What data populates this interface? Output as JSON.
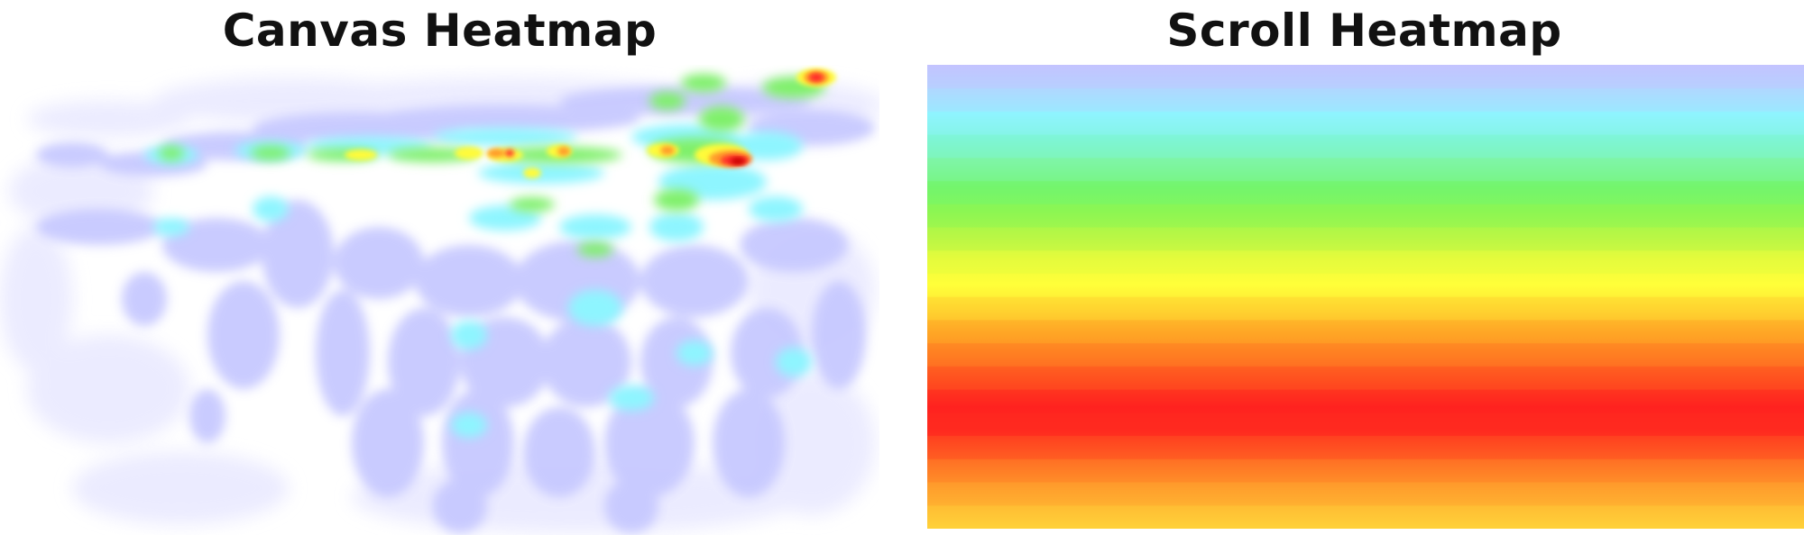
{
  "panels": {
    "canvas": {
      "title": "Canvas Heatmap",
      "palette": [
        "#ffffff",
        "#c7c9ff",
        "#8ef5ff",
        "#7ff06a",
        "#fffb3a",
        "#ff9a2a",
        "#ff2a2a",
        "#c80000"
      ]
    },
    "scroll": {
      "title": "Scroll Heatmap",
      "bands": [
        {
          "color": "#c4c4ff"
        },
        {
          "color": "#b0d8ff"
        },
        {
          "color": "#8ff4ff"
        },
        {
          "color": "#7ff5d6"
        },
        {
          "color": "#7ef5a3"
        },
        {
          "color": "#74f56d"
        },
        {
          "color": "#8cf653"
        },
        {
          "color": "#b8f746"
        },
        {
          "color": "#e6fb3c"
        },
        {
          "color": "#ffff3a"
        },
        {
          "color": "#ffd530"
        },
        {
          "color": "#ffa526"
        },
        {
          "color": "#ff7a22"
        },
        {
          "color": "#ff4d20"
        },
        {
          "color": "#ff231f"
        },
        {
          "color": "#ff2a1f"
        },
        {
          "color": "#ff5a22"
        },
        {
          "color": "#ff8a28"
        },
        {
          "color": "#ffb030"
        },
        {
          "color": "#ffd23a"
        }
      ]
    }
  }
}
